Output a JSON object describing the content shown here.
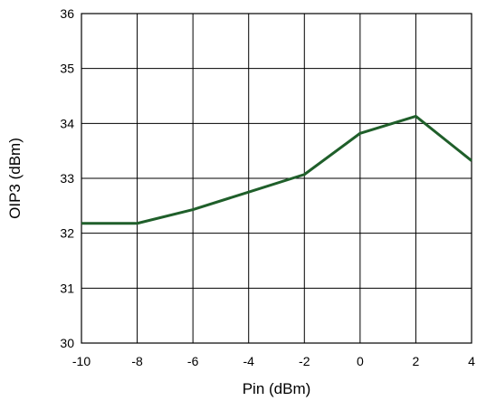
{
  "chart_data": {
    "type": "line",
    "title": "",
    "xlabel": "Pin (dBm)",
    "ylabel": "OIP3 (dBm)",
    "xlim": [
      -10,
      4
    ],
    "ylim": [
      30,
      36
    ],
    "xticks": [
      -10,
      -8,
      -6,
      -4,
      -2,
      0,
      2,
      4
    ],
    "yticks": [
      30,
      31,
      32,
      33,
      34,
      35,
      36
    ],
    "xtick_labels": [
      "-10",
      "-8",
      "-6",
      "-4",
      "-2",
      "0",
      "2",
      "4"
    ],
    "ytick_labels": [
      "30",
      "31",
      "32",
      "33",
      "34",
      "35",
      "36"
    ],
    "grid": true,
    "legend": "none",
    "series": [
      {
        "color": "#1f5f2a",
        "x": [
          -10,
          -8,
          -6,
          -4,
          -2,
          0,
          2,
          4
        ],
        "y": [
          32.18,
          32.18,
          32.43,
          32.75,
          33.07,
          33.82,
          34.13,
          33.32
        ]
      }
    ]
  }
}
